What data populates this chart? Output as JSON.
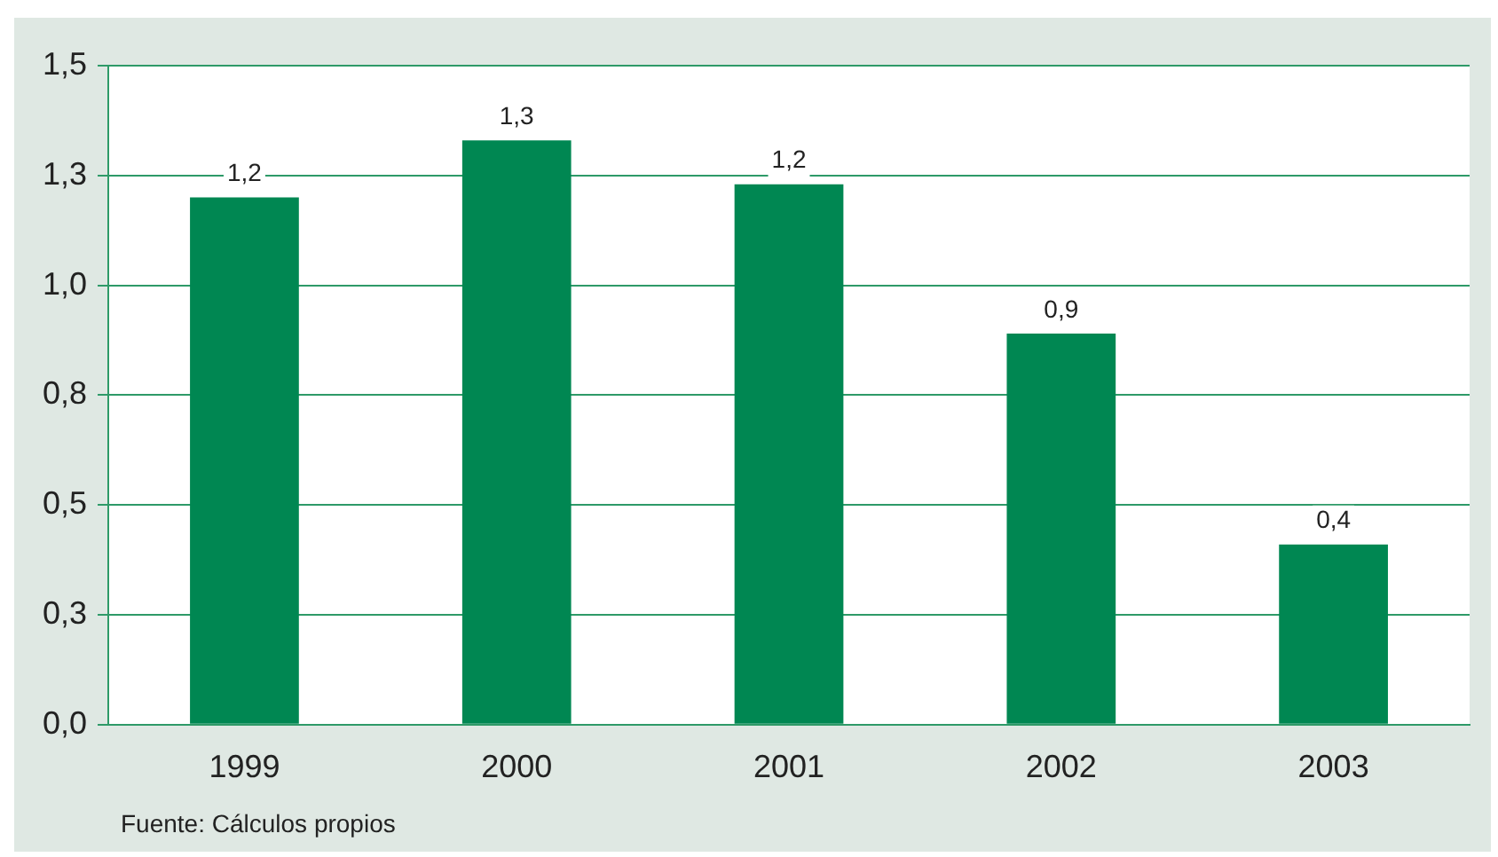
{
  "chart_data": {
    "type": "bar",
    "categories": [
      "1999",
      "2000",
      "2001",
      "2002",
      "2003"
    ],
    "values": [
      1.2,
      1.33,
      1.23,
      0.89,
      0.41
    ],
    "value_labels": [
      "1,2",
      "1,3",
      "1,2",
      "0,9",
      "0,4"
    ],
    "color": "#008752",
    "ylim": [
      0,
      1.5
    ],
    "yticks": [
      {
        "value": 0,
        "label": "0,0"
      },
      {
        "value": 0.25,
        "label": "0,3"
      },
      {
        "value": 0.5,
        "label": "0,5"
      },
      {
        "value": 0.75,
        "label": "0,8"
      },
      {
        "value": 1,
        "label": "1,0"
      },
      {
        "value": 1.25,
        "label": "1,3"
      },
      {
        "value": 1.5,
        "label": "1,5"
      }
    ],
    "grid": "y",
    "annotations": [
      "Fuente: Cálculos propios"
    ]
  }
}
